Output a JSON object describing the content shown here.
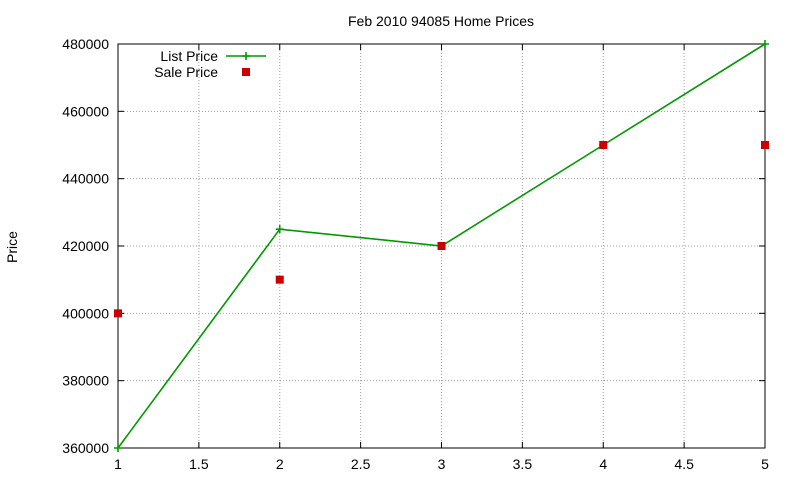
{
  "chart_data": {
    "type": "line",
    "title": "Feb 2010 94085 Home Prices",
    "xlabel": "",
    "ylabel": "Price",
    "xlim": [
      1,
      5
    ],
    "ylim": [
      360000,
      480000
    ],
    "x_ticks": [
      "1",
      "1.5",
      "2",
      "2.5",
      "3",
      "3.5",
      "4",
      "4.5",
      "5"
    ],
    "y_ticks": [
      "360000",
      "380000",
      "400000",
      "420000",
      "440000",
      "460000",
      "480000"
    ],
    "grid": true,
    "legend_position": "top-left",
    "series": [
      {
        "name": "List Price",
        "type": "line",
        "marker": "plus",
        "color": "#009900",
        "x": [
          1,
          2,
          3,
          4,
          5
        ],
        "values": [
          360000,
          425000,
          420000,
          450000,
          480000
        ]
      },
      {
        "name": "Sale Price",
        "type": "scatter",
        "marker": "square",
        "color": "#cc0000",
        "x": [
          1,
          2,
          3,
          4,
          5
        ],
        "values": [
          400000,
          410000,
          420000,
          450000,
          450000
        ]
      }
    ]
  }
}
